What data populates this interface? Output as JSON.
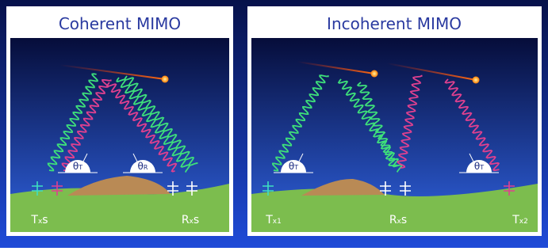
{
  "panels": [
    {
      "title": "Coherent MIMO",
      "angles": [
        {
          "base": "θ",
          "sub": "T"
        },
        {
          "base": "θ",
          "sub": "R"
        }
      ],
      "labels": [
        {
          "base": "T",
          "sub": "x",
          "rest": "s"
        },
        {
          "base": "R",
          "sub": "x",
          "rest": "s"
        }
      ]
    },
    {
      "title": "Incoherent MIMO",
      "angles": [
        {
          "base": "θ",
          "sub": "T"
        },
        {
          "base": "θ",
          "sub": "T"
        }
      ],
      "labels": [
        {
          "base": "T",
          "sub": "x1",
          "rest": ""
        },
        {
          "base": "R",
          "sub": "x",
          "rest": "s"
        },
        {
          "base": "T",
          "sub": "x2",
          "rest": ""
        }
      ]
    }
  ]
}
